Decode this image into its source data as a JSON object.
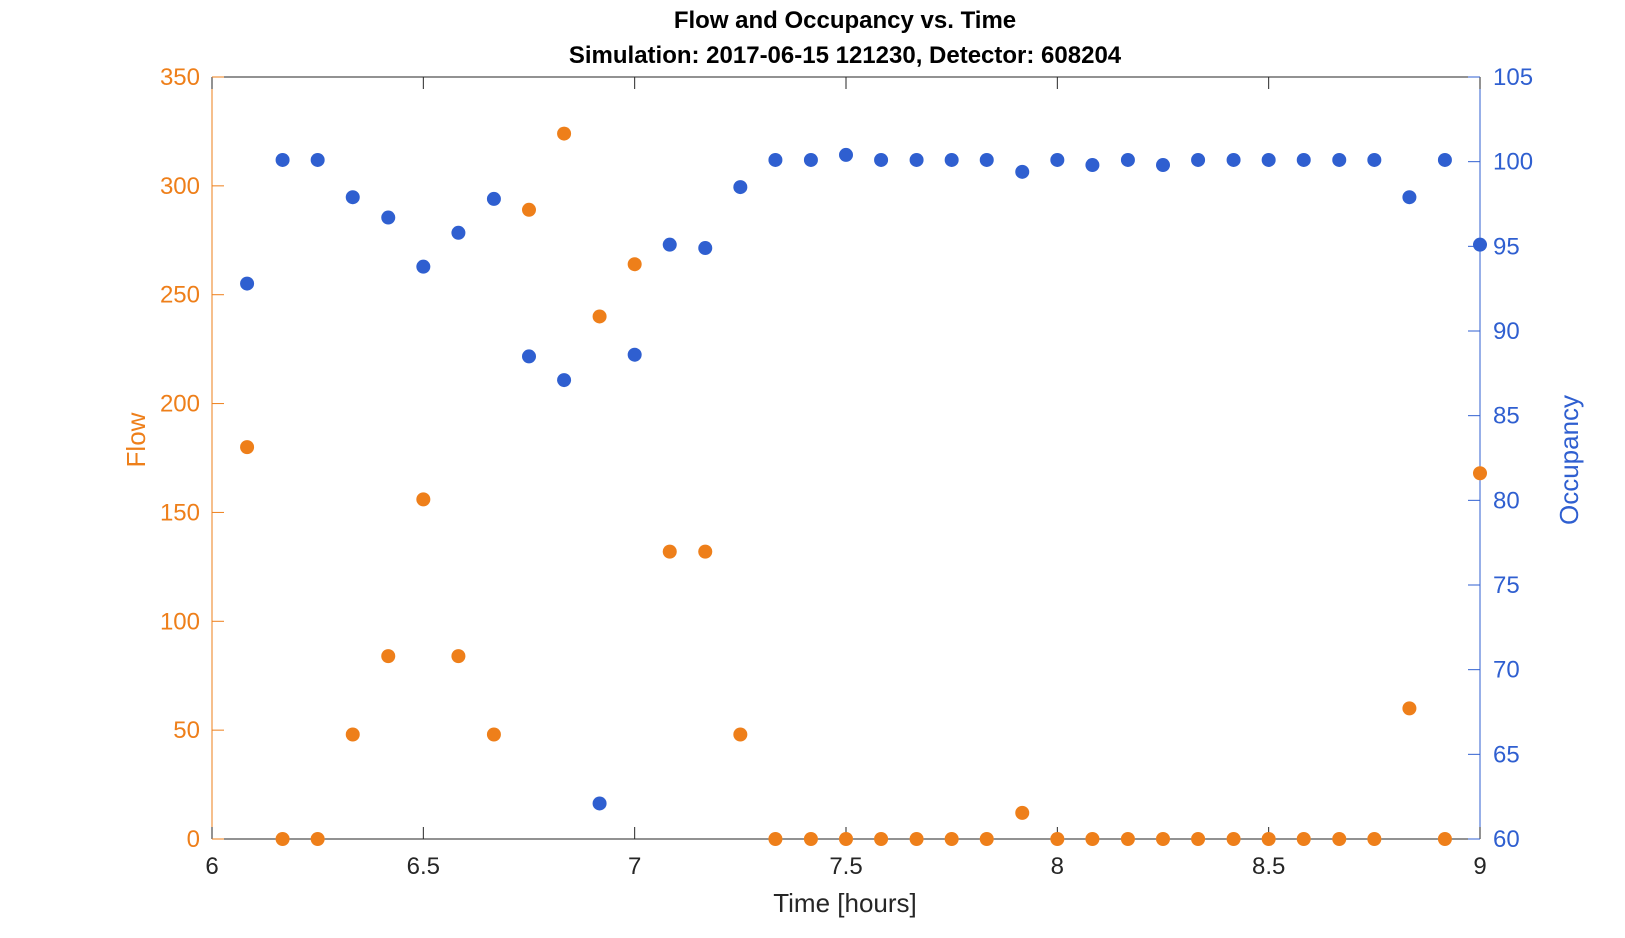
{
  "chart_data": {
    "type": "scatter",
    "title": "Flow and Occupancy vs. Time",
    "subtitle": "Simulation:  2017-06-15 121230,  Detector:  608204",
    "xlabel": "Time [hours]",
    "ylabel_left": "Flow",
    "ylabel_right": "Occupancy",
    "xlim": [
      6,
      9
    ],
    "ylim_left": [
      0,
      350
    ],
    "ylim_right": [
      60,
      105
    ],
    "xticks": [
      "6",
      "6.5",
      "7",
      "7.5",
      "8",
      "8.5",
      "9"
    ],
    "yticks_left": [
      "0",
      "50",
      "100",
      "150",
      "200",
      "250",
      "300",
      "350"
    ],
    "yticks_right": [
      "60",
      "65",
      "70",
      "75",
      "80",
      "85",
      "90",
      "95",
      "100",
      "105"
    ],
    "colors": {
      "flow": "#ee7f1a",
      "occupancy": "#2f5fd0",
      "axis": "#262626"
    },
    "grid": false,
    "x": [
      6.083,
      6.167,
      6.25,
      6.333,
      6.417,
      6.5,
      6.583,
      6.667,
      6.75,
      6.833,
      6.917,
      7.0,
      7.083,
      7.167,
      7.25,
      7.333,
      7.417,
      7.5,
      7.583,
      7.667,
      7.75,
      7.833,
      7.917,
      8.0,
      8.083,
      8.167,
      8.25,
      8.333,
      8.417,
      8.5,
      8.583,
      8.667,
      8.75,
      8.833,
      8.917,
      9.0
    ],
    "series": [
      {
        "name": "Flow",
        "axis": "left",
        "values": [
          180,
          0,
          0,
          48,
          84,
          156,
          84,
          48,
          289,
          324,
          240,
          264,
          132,
          132,
          48,
          0,
          0,
          0,
          0,
          0,
          0,
          0,
          12,
          0,
          0,
          0,
          0,
          0,
          0,
          0,
          0,
          0,
          0,
          60,
          0,
          168
        ]
      },
      {
        "name": "Occupancy",
        "axis": "right",
        "values": [
          92.8,
          100.1,
          100.1,
          97.9,
          96.7,
          93.8,
          95.8,
          97.8,
          88.5,
          87.1,
          62.1,
          88.6,
          95.1,
          94.9,
          98.5,
          100.1,
          100.1,
          100.4,
          100.1,
          100.1,
          100.1,
          100.1,
          99.4,
          100.1,
          99.8,
          100.1,
          99.8,
          100.1,
          100.1,
          100.1,
          100.1,
          100.1,
          100.1,
          97.9,
          100.1,
          95.1
        ]
      }
    ]
  }
}
